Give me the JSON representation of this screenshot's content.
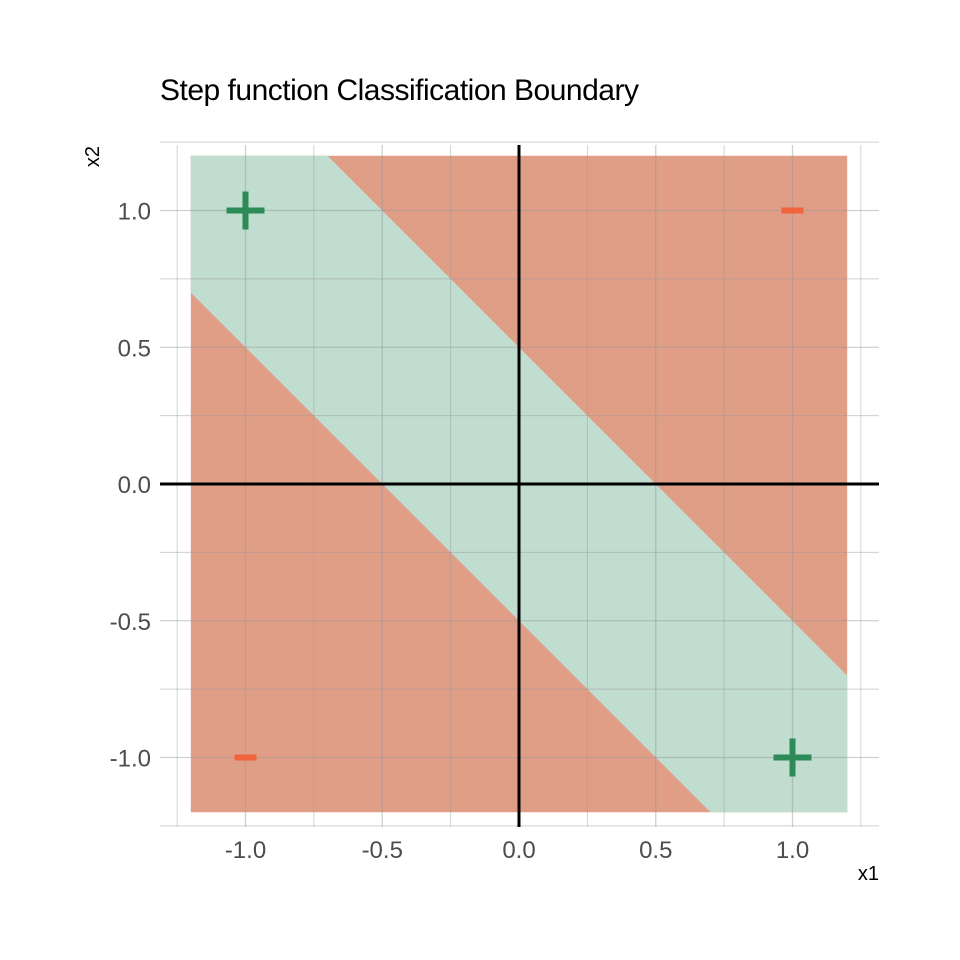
{
  "chart_data": {
    "type": "area",
    "title": "Step function Classification Boundary",
    "xlabel": "x1",
    "ylabel": "x2",
    "xlim": [
      -1.2,
      1.2
    ],
    "ylim": [
      -1.2,
      1.2
    ],
    "x_ticks": [
      {
        "value": -1.0,
        "label": "-1.0"
      },
      {
        "value": -0.5,
        "label": "-0.5"
      },
      {
        "value": 0.0,
        "label": "0.0"
      },
      {
        "value": 0.5,
        "label": "0.5"
      },
      {
        "value": 1.0,
        "label": "1.0"
      }
    ],
    "y_ticks": [
      {
        "value": 1.0,
        "label": "1.0"
      },
      {
        "value": 0.5,
        "label": "0.5"
      },
      {
        "value": 0.0,
        "label": "0.0"
      },
      {
        "value": -0.5,
        "label": "-0.5"
      },
      {
        "value": -1.0,
        "label": "-1.0"
      }
    ],
    "grid": true,
    "reference_lines": {
      "x": 0,
      "y": 0
    },
    "regions": [
      {
        "class": "negative",
        "color": "#e09e87",
        "polygon": [
          [
            -1.2,
            -1.2
          ],
          [
            1.2,
            -1.2
          ],
          [
            1.2,
            1.2
          ],
          [
            -1.2,
            1.2
          ]
        ]
      },
      {
        "class": "positive",
        "color": "#c0ddcf",
        "polygon": [
          [
            -1.2,
            1.2
          ],
          [
            -0.7,
            1.2
          ],
          [
            1.2,
            -0.7
          ],
          [
            1.2,
            -1.2
          ],
          [
            0.7,
            -1.2
          ],
          [
            -1.2,
            0.7
          ]
        ]
      }
    ],
    "points": [
      {
        "x": -1,
        "y": 1,
        "marker": "plus",
        "color": "#2e8b57"
      },
      {
        "x": 1,
        "y": 1,
        "marker": "minus",
        "color": "#f0643c"
      },
      {
        "x": -1,
        "y": -1,
        "marker": "minus",
        "color": "#f0643c"
      },
      {
        "x": 1,
        "y": -1,
        "marker": "plus",
        "color": "#2e8b57"
      }
    ]
  }
}
